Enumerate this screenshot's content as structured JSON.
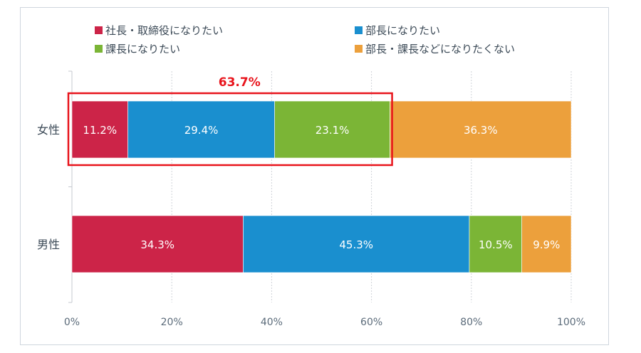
{
  "chart_data": {
    "type": "bar",
    "orientation": "horizontal",
    "stacked": true,
    "categories": [
      "女性",
      "男性"
    ],
    "series": [
      {
        "name": "社長・取締役になりたい",
        "values": [
          11.2,
          34.3
        ],
        "color": "#cc2448"
      },
      {
        "name": "部長になりたい",
        "values": [
          29.4,
          45.3
        ],
        "color": "#1a8fcf"
      },
      {
        "name": "課長になりたい",
        "values": [
          23.1,
          10.5
        ],
        "color": "#7bb536"
      },
      {
        "name": "部長・課長などになりたくない",
        "values": [
          36.3,
          9.9
        ],
        "color": "#eca03c"
      }
    ],
    "data_labels": [
      [
        "11.2%",
        "34.3%"
      ],
      [
        "29.4%",
        "45.3%"
      ],
      [
        "23.1%",
        "10.5%"
      ],
      [
        "36.3%",
        "9.9%"
      ]
    ],
    "xlim": [
      0,
      100
    ],
    "xticks": [
      0,
      20,
      40,
      60,
      80,
      100
    ],
    "xtick_labels": [
      "0%",
      "20%",
      "40%",
      "60%",
      "80%",
      "100%"
    ],
    "grid": true,
    "legend_position": "top",
    "highlight": {
      "category": "女性",
      "series_count": 3,
      "label": "63.7%",
      "color": "#e8141c"
    }
  }
}
